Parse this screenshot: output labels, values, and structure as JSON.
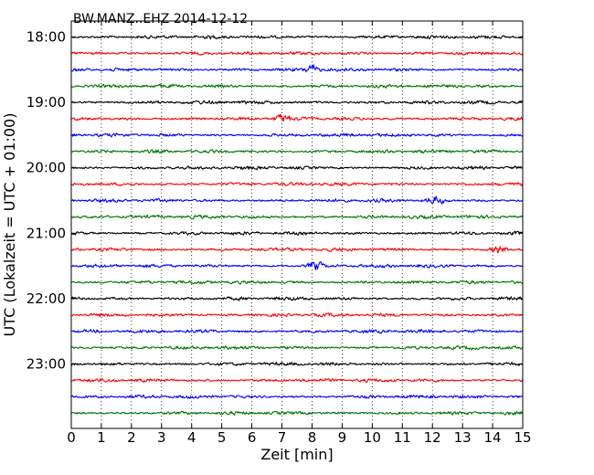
{
  "chart_data": {
    "type": "line",
    "title": "BW.MANZ..EHZ 2014-12-12",
    "xlabel": "Zeit  [min]",
    "ylabel": "UTC (Lokalzeit = UTC + 01:00)",
    "xlim": [
      0,
      15
    ],
    "x_ticks": [
      "0",
      "1",
      "2",
      "3",
      "4",
      "5",
      "6",
      "7",
      "8",
      "9",
      "10",
      "11",
      "12",
      "13",
      "14",
      "15"
    ],
    "y_ticks": [
      "18:00",
      "19:00",
      "20:00",
      "21:00",
      "22:00",
      "23:00"
    ],
    "vertical_grid": "dotted",
    "trace_colors": [
      "#000000",
      "#ff0000",
      "#0000ff",
      "#007700"
    ],
    "num_traces": 24,
    "trace_minutes": 15,
    "series": [
      {
        "start": "18:00",
        "color": "#000000"
      },
      {
        "start": "18:15",
        "color": "#ff0000"
      },
      {
        "start": "18:30",
        "color": "#0000ff"
      },
      {
        "start": "18:45",
        "color": "#007700"
      },
      {
        "start": "19:00",
        "color": "#000000"
      },
      {
        "start": "19:15",
        "color": "#ff0000"
      },
      {
        "start": "19:30",
        "color": "#0000ff"
      },
      {
        "start": "19:45",
        "color": "#007700"
      },
      {
        "start": "20:00",
        "color": "#000000"
      },
      {
        "start": "20:15",
        "color": "#ff0000"
      },
      {
        "start": "20:30",
        "color": "#0000ff"
      },
      {
        "start": "20:45",
        "color": "#007700"
      },
      {
        "start": "21:00",
        "color": "#000000"
      },
      {
        "start": "21:15",
        "color": "#ff0000"
      },
      {
        "start": "21:30",
        "color": "#0000ff"
      },
      {
        "start": "21:45",
        "color": "#007700"
      },
      {
        "start": "22:00",
        "color": "#000000"
      },
      {
        "start": "22:15",
        "color": "#ff0000"
      },
      {
        "start": "22:30",
        "color": "#0000ff"
      },
      {
        "start": "22:45",
        "color": "#007700"
      },
      {
        "start": "23:00",
        "color": "#000000"
      },
      {
        "start": "23:15",
        "color": "#ff0000"
      },
      {
        "start": "23:30",
        "color": "#0000ff"
      },
      {
        "start": "23:45",
        "color": "#007700"
      }
    ],
    "events": [
      {
        "trace": 10,
        "minute": 12.1
      },
      {
        "trace": 13,
        "minute": 14.2
      },
      {
        "trace": 14,
        "minute": 8.1
      },
      {
        "trace": 2,
        "minute": 8.0
      },
      {
        "trace": 5,
        "minute": 7.0
      }
    ]
  }
}
